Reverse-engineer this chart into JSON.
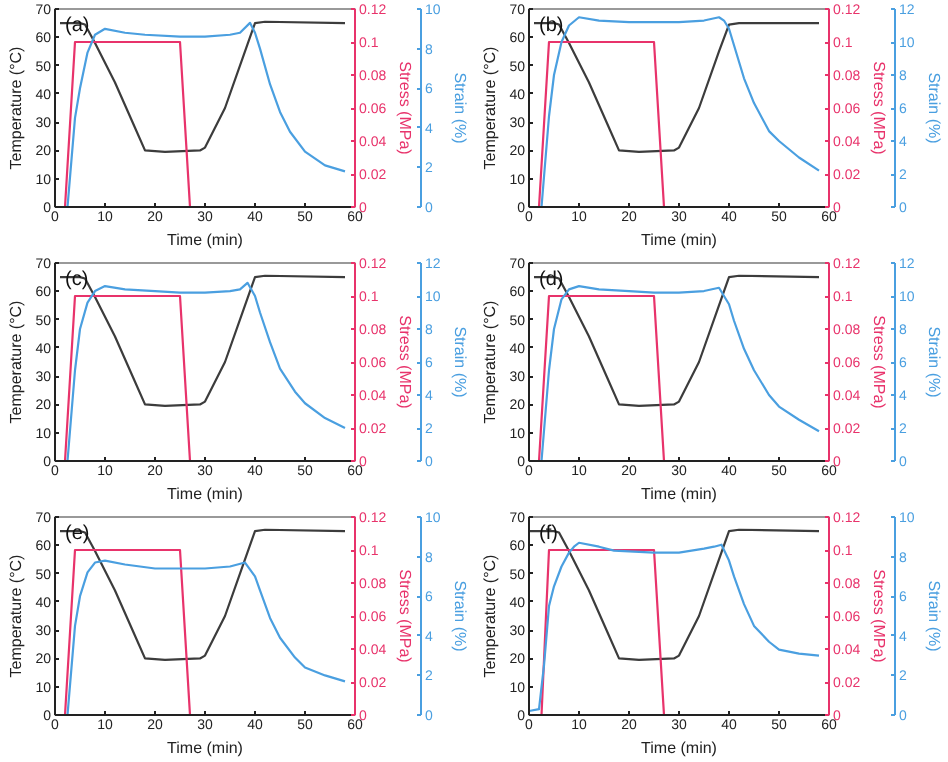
{
  "chart_data": [
    {
      "type": "line",
      "annotations": [
        "(a)"
      ],
      "xlabel": "Time (min)",
      "ylabel": "Temperature (°C)",
      "y2label": "Stress (MPa)",
      "y3label": "Strain (%)",
      "xlim": [
        0,
        60
      ],
      "xticks": [
        0,
        10,
        20,
        30,
        40,
        50,
        60
      ],
      "ylim": [
        0,
        70
      ],
      "yticks": [
        0,
        10,
        20,
        30,
        40,
        50,
        60,
        70
      ],
      "y2lim": [
        0,
        0.12
      ],
      "y2ticks": [
        0,
        0.02,
        0.04,
        0.06,
        0.08,
        0.1,
        0.12
      ],
      "y3lim": [
        0,
        10
      ],
      "y3ticks": [
        0,
        2,
        4,
        6,
        8,
        10
      ],
      "grid": false,
      "series": [
        {
          "color": "#3c3c3c",
          "axis": "y",
          "x": [
            1,
            5,
            6,
            8,
            12,
            16,
            18,
            22,
            29,
            30,
            34,
            38,
            40,
            42,
            58
          ],
          "values": [
            65,
            65,
            64.5,
            58,
            44,
            28,
            20,
            19.5,
            20,
            21,
            35,
            55,
            65,
            65.5,
            65
          ]
        },
        {
          "color": "#e8336b",
          "axis": "y2",
          "x": [
            2,
            4,
            25,
            27
          ],
          "values": [
            0,
            0.1,
            0.1,
            0
          ]
        },
        {
          "color": "#4a9fe0",
          "axis": "y3",
          "x": [
            2.5,
            4,
            5,
            6.5,
            8,
            10,
            14,
            18,
            25,
            30,
            35,
            37,
            39,
            40,
            41,
            43,
            45,
            47,
            50,
            54,
            58
          ],
          "values": [
            0,
            4.5,
            6,
            7.8,
            8.7,
            9,
            8.8,
            8.7,
            8.6,
            8.6,
            8.7,
            8.8,
            9.3,
            8.8,
            8,
            6.2,
            4.8,
            3.8,
            2.8,
            2.1,
            1.8
          ]
        }
      ]
    },
    {
      "type": "line",
      "annotations": [
        "(b)"
      ],
      "xlabel": "Time (min)",
      "ylabel": "Temperature (°C)",
      "y2label": "Stress (MPa)",
      "y3label": "Strain (%)",
      "xlim": [
        0,
        60
      ],
      "xticks": [
        0,
        10,
        20,
        30,
        40,
        50,
        60
      ],
      "ylim": [
        0,
        70
      ],
      "yticks": [
        0,
        10,
        20,
        30,
        40,
        50,
        60,
        70
      ],
      "y2lim": [
        0,
        0.12
      ],
      "y2ticks": [
        0,
        0.02,
        0.04,
        0.06,
        0.08,
        0.1,
        0.12
      ],
      "y3lim": [
        0,
        12
      ],
      "y3ticks": [
        0,
        2,
        4,
        6,
        8,
        10,
        12
      ],
      "grid": false,
      "series": [
        {
          "color": "#3c3c3c",
          "axis": "y",
          "x": [
            1,
            5,
            6,
            8,
            12,
            16,
            18,
            22,
            29,
            30,
            34,
            38,
            40,
            42,
            58
          ],
          "values": [
            65,
            65,
            64.5,
            58,
            44,
            28,
            20,
            19.5,
            20,
            21,
            35,
            55,
            64.5,
            65,
            65
          ]
        },
        {
          "color": "#e8336b",
          "axis": "y2",
          "x": [
            2,
            4,
            25,
            27
          ],
          "values": [
            0,
            0.1,
            0.1,
            0
          ]
        },
        {
          "color": "#4a9fe0",
          "axis": "y3",
          "x": [
            2.5,
            4,
            5,
            6.5,
            8,
            10,
            14,
            20,
            25,
            30,
            35,
            38,
            39,
            40,
            41,
            43,
            45,
            48,
            50,
            54,
            58
          ],
          "values": [
            0,
            5.5,
            8,
            10,
            11,
            11.5,
            11.3,
            11.2,
            11.2,
            11.2,
            11.3,
            11.5,
            11.3,
            10.8,
            9.8,
            7.8,
            6.3,
            4.6,
            4,
            3,
            2.2
          ]
        }
      ]
    },
    {
      "type": "line",
      "annotations": [
        "(c)"
      ],
      "xlabel": "Time (min)",
      "ylabel": "Temperature (°C)",
      "y2label": "Stress (MPa)",
      "y3label": "Strain (%)",
      "xlim": [
        0,
        60
      ],
      "xticks": [
        0,
        10,
        20,
        30,
        40,
        50,
        60
      ],
      "ylim": [
        0,
        70
      ],
      "yticks": [
        0,
        10,
        20,
        30,
        40,
        50,
        60,
        70
      ],
      "y2lim": [
        0,
        0.12
      ],
      "y2ticks": [
        0,
        0.02,
        0.04,
        0.06,
        0.08,
        0.1,
        0.12
      ],
      "y3lim": [
        0,
        12
      ],
      "y3ticks": [
        0,
        2,
        4,
        6,
        8,
        10,
        12
      ],
      "grid": false,
      "series": [
        {
          "color": "#3c3c3c",
          "axis": "y",
          "x": [
            1,
            5,
            6,
            8,
            12,
            16,
            18,
            22,
            29,
            30,
            34,
            38,
            40,
            42,
            58
          ],
          "values": [
            65,
            65,
            64.5,
            58,
            44,
            28,
            20,
            19.5,
            20,
            21,
            35,
            55,
            65,
            65.5,
            65
          ]
        },
        {
          "color": "#e8336b",
          "axis": "y2",
          "x": [
            2,
            4,
            25,
            27
          ],
          "values": [
            0,
            0.1,
            0.1,
            0
          ]
        },
        {
          "color": "#4a9fe0",
          "axis": "y3",
          "x": [
            2.5,
            4,
            5,
            6.5,
            8,
            10,
            14,
            20,
            25,
            30,
            35,
            37,
            38.5,
            40,
            41,
            43,
            45,
            48,
            50,
            54,
            58
          ],
          "values": [
            0,
            5.5,
            8,
            9.6,
            10.3,
            10.6,
            10.4,
            10.3,
            10.2,
            10.2,
            10.3,
            10.4,
            10.8,
            10,
            9,
            7.2,
            5.6,
            4.2,
            3.5,
            2.6,
            2
          ]
        }
      ]
    },
    {
      "type": "line",
      "annotations": [
        "(d)"
      ],
      "xlabel": "Time (min)",
      "ylabel": "Temperature (°C)",
      "y2label": "Stress (MPa)",
      "y3label": "Strain (%)",
      "xlim": [
        0,
        60
      ],
      "xticks": [
        0,
        10,
        20,
        30,
        40,
        50,
        60
      ],
      "ylim": [
        0,
        70
      ],
      "yticks": [
        0,
        10,
        20,
        30,
        40,
        50,
        60,
        70
      ],
      "y2lim": [
        0,
        0.12
      ],
      "y2ticks": [
        0,
        0.02,
        0.04,
        0.06,
        0.08,
        0.1,
        0.12
      ],
      "y3lim": [
        0,
        12
      ],
      "y3ticks": [
        0,
        2,
        4,
        6,
        8,
        10,
        12
      ],
      "grid": false,
      "series": [
        {
          "color": "#3c3c3c",
          "axis": "y",
          "x": [
            1,
            5,
            6,
            8,
            12,
            16,
            18,
            22,
            29,
            30,
            34,
            38,
            40,
            42,
            58
          ],
          "values": [
            65,
            65,
            64.5,
            58,
            44,
            28,
            20,
            19.5,
            20,
            21,
            35,
            55,
            65,
            65.5,
            65
          ]
        },
        {
          "color": "#e8336b",
          "axis": "y2",
          "x": [
            2,
            4,
            25,
            27
          ],
          "values": [
            0,
            0.1,
            0.1,
            0
          ]
        },
        {
          "color": "#4a9fe0",
          "axis": "y3",
          "x": [
            2.5,
            4,
            5,
            6.5,
            8,
            10,
            14,
            20,
            25,
            30,
            35,
            38,
            40,
            41,
            43,
            45,
            48,
            50,
            54,
            58
          ],
          "values": [
            0,
            5.5,
            8,
            9.8,
            10.4,
            10.6,
            10.4,
            10.3,
            10.2,
            10.2,
            10.3,
            10.5,
            9.5,
            8.5,
            6.8,
            5.5,
            4,
            3.3,
            2.5,
            1.8
          ]
        }
      ]
    },
    {
      "type": "line",
      "annotations": [
        "(e)"
      ],
      "xlabel": "Time (min)",
      "ylabel": "Temperature (°C)",
      "y2label": "Stress (MPa)",
      "y3label": "Strain (%)",
      "xlim": [
        0,
        60
      ],
      "xticks": [
        0,
        10,
        20,
        30,
        40,
        50,
        60
      ],
      "ylim": [
        0,
        70
      ],
      "yticks": [
        0,
        10,
        20,
        30,
        40,
        50,
        60,
        70
      ],
      "y2lim": [
        0,
        0.12
      ],
      "y2ticks": [
        0,
        0.02,
        0.04,
        0.06,
        0.08,
        0.1,
        0.12
      ],
      "y3lim": [
        0,
        10
      ],
      "y3ticks": [
        0,
        2,
        4,
        6,
        8,
        10
      ],
      "grid": false,
      "series": [
        {
          "color": "#3c3c3c",
          "axis": "y",
          "x": [
            1,
            5,
            6,
            8,
            12,
            16,
            18,
            22,
            29,
            30,
            34,
            38,
            40,
            42,
            58
          ],
          "values": [
            65,
            65,
            64.5,
            58,
            44,
            28,
            20,
            19.5,
            20,
            21,
            35,
            55,
            65,
            65.5,
            65
          ]
        },
        {
          "color": "#e8336b",
          "axis": "y2",
          "x": [
            2,
            4,
            25,
            27
          ],
          "values": [
            0,
            0.1,
            0.1,
            0
          ]
        },
        {
          "color": "#4a9fe0",
          "axis": "y3",
          "x": [
            2.5,
            4,
            5,
            6.5,
            8,
            10,
            14,
            20,
            25,
            30,
            35,
            38,
            40,
            41,
            43,
            45,
            48,
            50,
            54,
            58
          ],
          "values": [
            0,
            4.5,
            6,
            7.2,
            7.7,
            7.8,
            7.6,
            7.4,
            7.4,
            7.4,
            7.5,
            7.7,
            7,
            6.3,
            4.9,
            3.9,
            2.9,
            2.4,
            2,
            1.7
          ]
        }
      ]
    },
    {
      "type": "line",
      "annotations": [
        "(f)"
      ],
      "xlabel": "Time (min)",
      "ylabel": "Temperature (°C)",
      "y2label": "Stress (MPa)",
      "y3label": "Strain (%)",
      "xlim": [
        0,
        60
      ],
      "xticks": [
        0,
        10,
        20,
        30,
        40,
        50,
        60
      ],
      "ylim": [
        0,
        70
      ],
      "yticks": [
        0,
        10,
        20,
        30,
        40,
        50,
        60,
        70
      ],
      "y2lim": [
        0,
        0.12
      ],
      "y2ticks": [
        0,
        0.02,
        0.04,
        0.06,
        0.08,
        0.1,
        0.12
      ],
      "y3lim": [
        0,
        10
      ],
      "y3ticks": [
        0,
        2,
        4,
        6,
        8,
        10
      ],
      "grid": false,
      "series": [
        {
          "color": "#3c3c3c",
          "axis": "y",
          "x": [
            0,
            5,
            6,
            8,
            12,
            16,
            18,
            22,
            29,
            30,
            34,
            38,
            40,
            42,
            58
          ],
          "values": [
            65,
            65,
            64.5,
            58,
            44,
            28,
            20,
            19.5,
            20,
            21,
            35,
            55,
            65,
            65.5,
            65
          ]
        },
        {
          "color": "#e8336b",
          "axis": "y2",
          "x": [
            2.5,
            4,
            25,
            27
          ],
          "values": [
            0,
            0.1,
            0.1,
            0
          ]
        },
        {
          "color": "#4a9fe0",
          "axis": "y3",
          "x": [
            0,
            2,
            3,
            4,
            5,
            6.5,
            8,
            9,
            10,
            14,
            17,
            25,
            30,
            35,
            37,
            38.5,
            40,
            41,
            43,
            45,
            48,
            50,
            54,
            58
          ],
          "values": [
            0.2,
            0.3,
            2.5,
            5.5,
            6.5,
            7.5,
            8.2,
            8.5,
            8.7,
            8.5,
            8.3,
            8.2,
            8.2,
            8.4,
            8.5,
            8.6,
            7.8,
            7,
            5.6,
            4.5,
            3.7,
            3.3,
            3.1,
            3
          ]
        }
      ]
    }
  ]
}
